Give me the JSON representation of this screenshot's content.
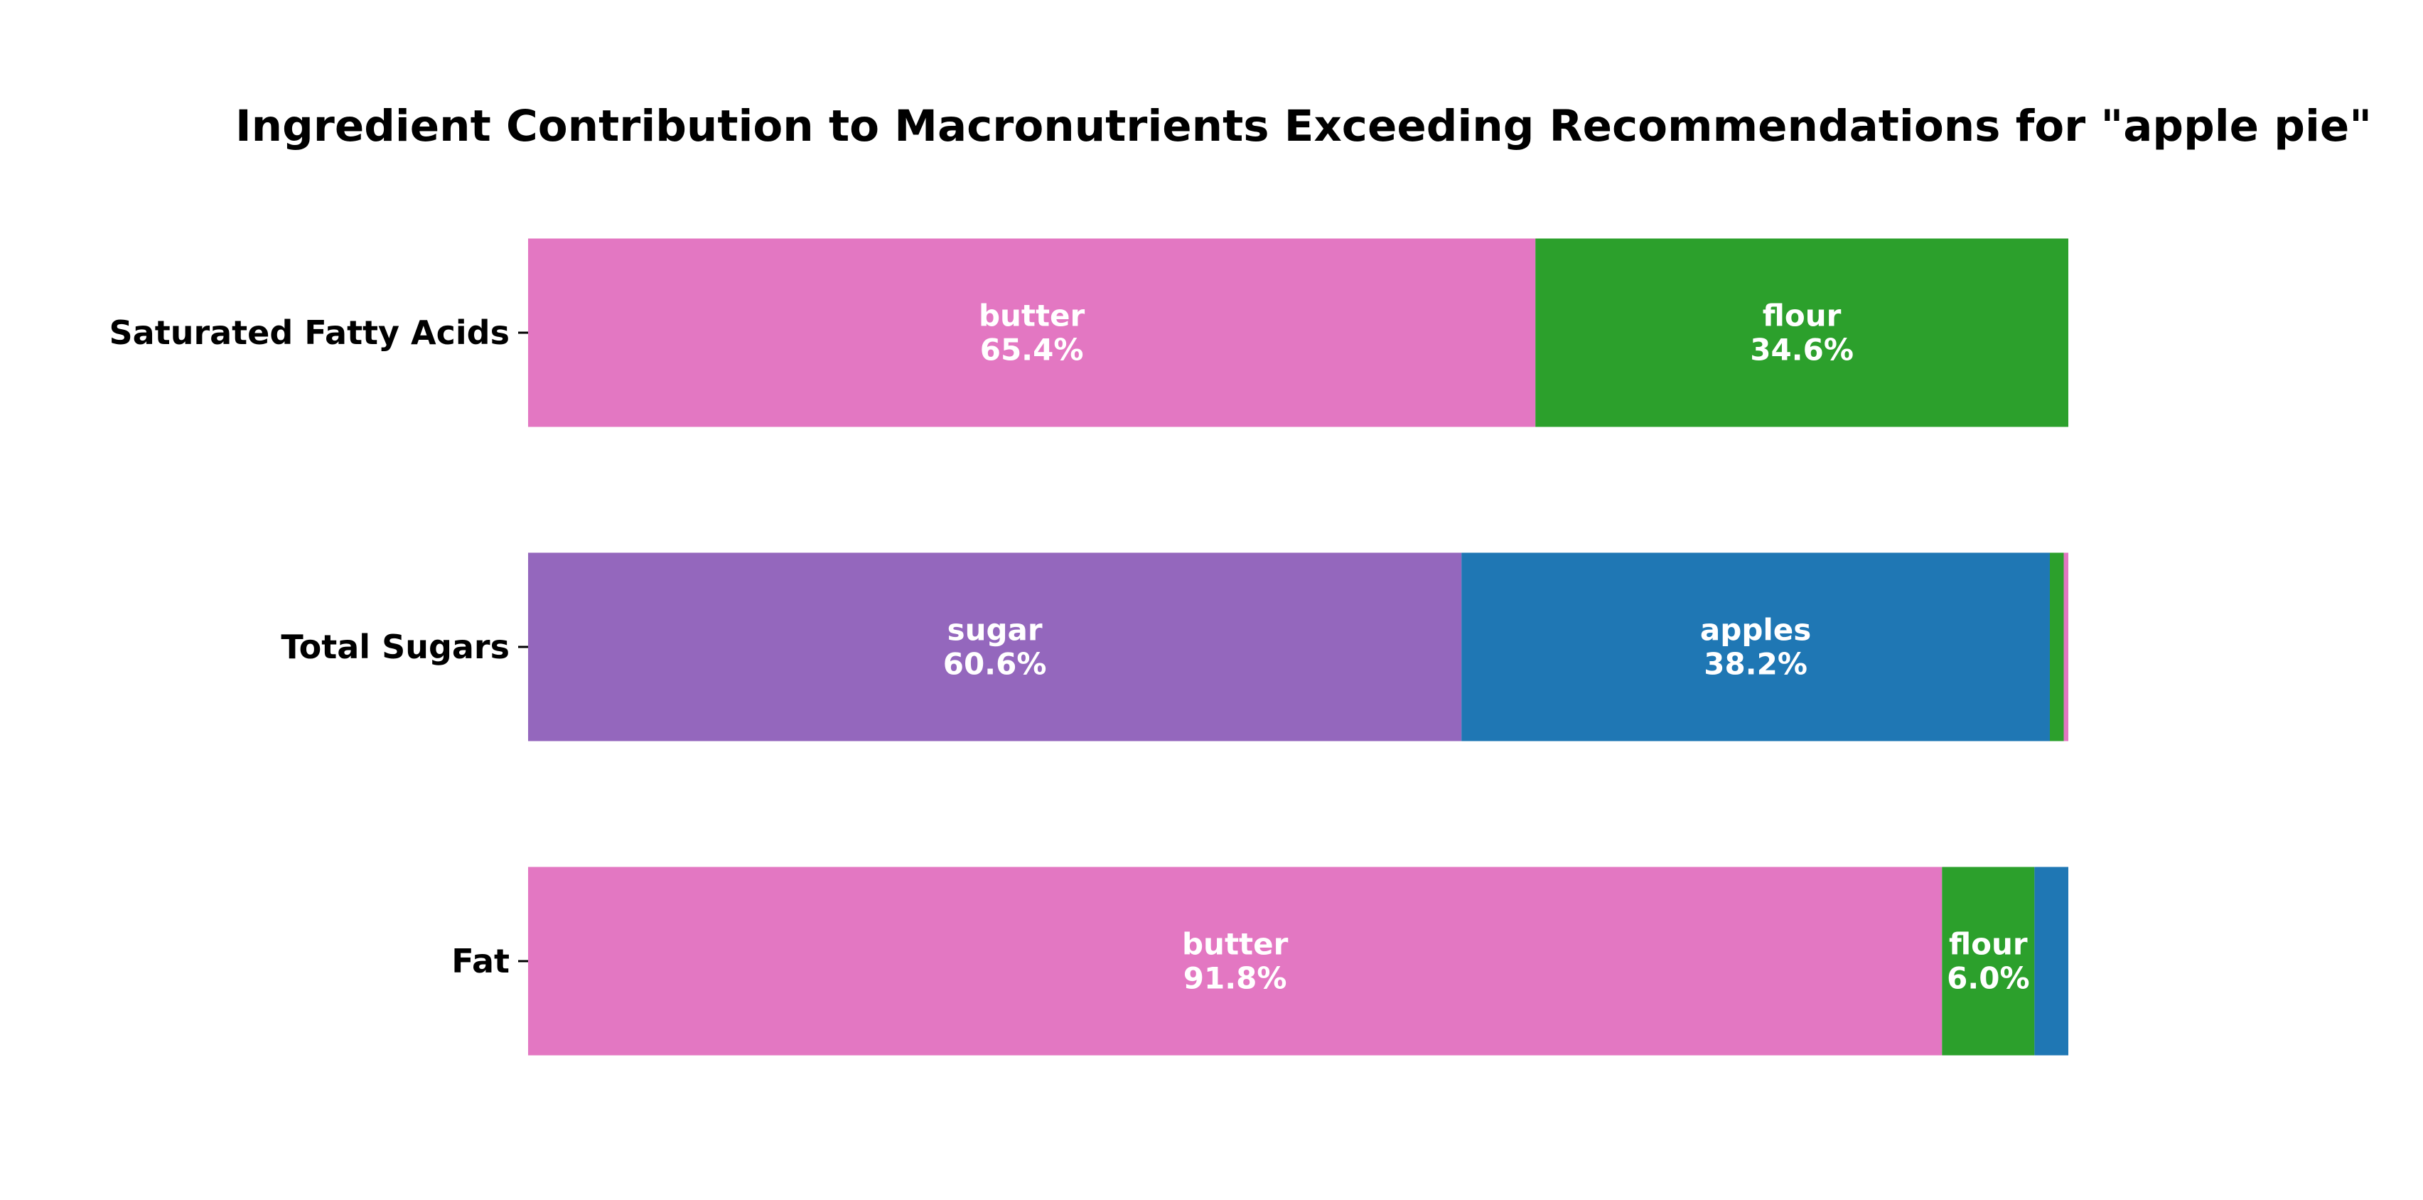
{
  "chart_data": {
    "type": "bar",
    "orientation": "horizontal",
    "stacked": true,
    "normalized": true,
    "title": "Ingredient Contribution to Macronutrients Exceeding Recommendations for \"apple pie\"",
    "xlabel": "",
    "ylabel": "",
    "xlim": [
      0,
      100
    ],
    "grid": false,
    "legend": "none",
    "categories": [
      "Saturated Fatty Acids",
      "Total Sugars",
      "Fat"
    ],
    "bars": [
      {
        "category": "Saturated Fatty Acids",
        "segments": [
          {
            "ingredient": "butter",
            "value": 65.4,
            "label": "butter\n65.4%",
            "color": "#e377c2"
          },
          {
            "ingredient": "flour",
            "value": 34.6,
            "label": "flour\n34.6%",
            "color": "#2ca02c"
          }
        ]
      },
      {
        "category": "Total Sugars",
        "segments": [
          {
            "ingredient": "sugar",
            "value": 60.6,
            "label": "sugar\n60.6%",
            "color": "#9467bd"
          },
          {
            "ingredient": "apples",
            "value": 38.2,
            "label": "apples\n38.2%",
            "color": "#1f77b4"
          },
          {
            "ingredient": "flour",
            "value": 0.9,
            "label": "",
            "color": "#2ca02c"
          },
          {
            "ingredient": "butter",
            "value": 0.3,
            "label": "",
            "color": "#e377c2"
          }
        ]
      },
      {
        "category": "Fat",
        "segments": [
          {
            "ingredient": "butter",
            "value": 91.8,
            "label": "butter\n91.8%",
            "color": "#e377c2"
          },
          {
            "ingredient": "flour",
            "value": 6.0,
            "label": "flour\n6.0%",
            "color": "#2ca02c"
          },
          {
            "ingredient": "apples",
            "value": 2.2,
            "label": "",
            "color": "#1f77b4"
          }
        ]
      }
    ]
  }
}
